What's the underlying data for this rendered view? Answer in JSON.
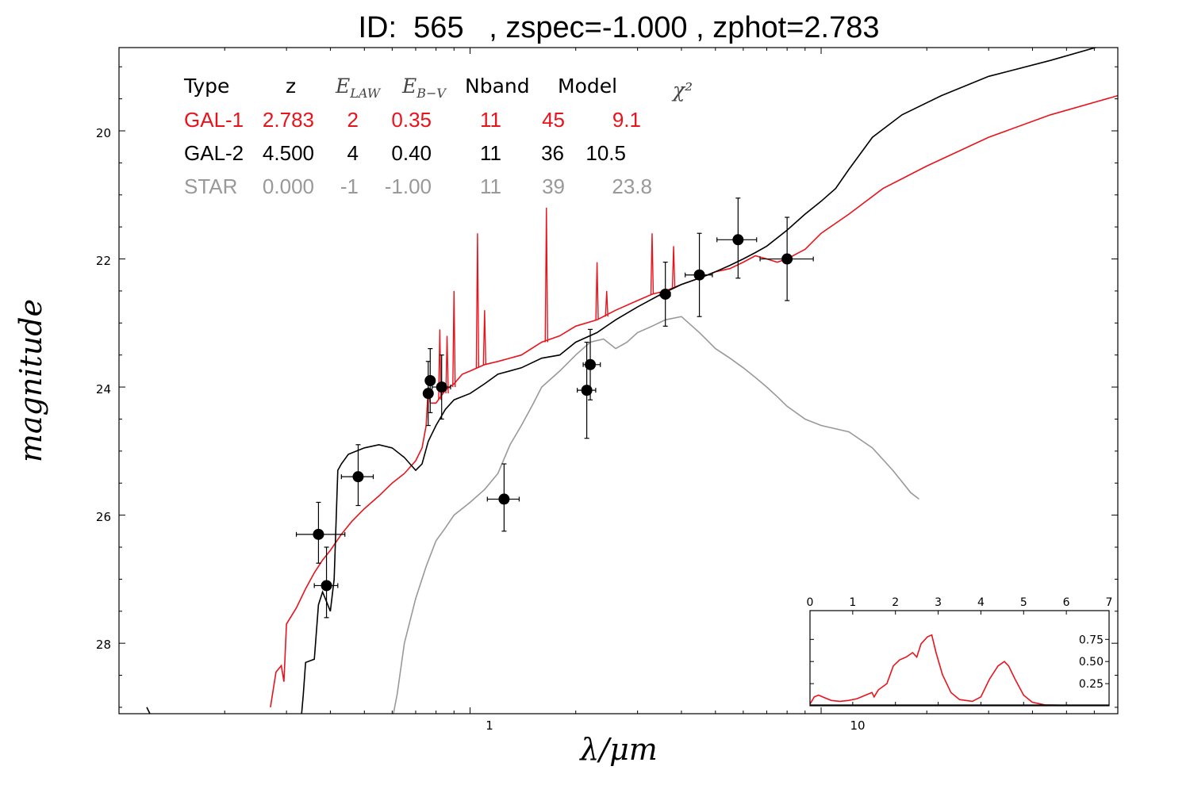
{
  "title": "ID:  565   , zspec=-1.000 , zphot=2.783",
  "colors": {
    "gal1": "#e8141c",
    "gal2": "#000000",
    "star": "#999999",
    "points": "#000000"
  },
  "chart_data": {
    "type": "line",
    "xlabel": "λ/μm",
    "ylabel": "magnitude",
    "xscale": "log",
    "xlim": [
      0.1,
      70
    ],
    "ylim": [
      29.1,
      18.7
    ],
    "x_tick_labels": [
      "1",
      "10"
    ],
    "y_tick_labels": [
      "20",
      "22",
      "24",
      "26",
      "28"
    ],
    "legend_table": {
      "headers": [
        "Type",
        "z",
        "E_LAW",
        "E_B-V",
        "Nband",
        "Model",
        "χ²"
      ],
      "rows": [
        {
          "type": "GAL-1",
          "z": "2.783",
          "elaw": "2",
          "ebv": "0.35",
          "nband": "11",
          "model": "45",
          "chi2": "9.1",
          "color": "#e8141c"
        },
        {
          "type": "GAL-2",
          "z": "4.500",
          "elaw": "4",
          "ebv": "0.40",
          "nband": "11",
          "model": "36",
          "chi2": "10.5",
          "color": "#000000"
        },
        {
          "type": "STAR",
          "z": "0.000",
          "elaw": "-1",
          "ebv": "-1.00",
          "nband": "11",
          "model": "39",
          "chi2": "23.8",
          "color": "#999999"
        }
      ]
    },
    "photometry": [
      {
        "x": 0.37,
        "y": 26.3,
        "xerr": [
          0.32,
          0.44
        ],
        "yerr": [
          25.8,
          26.75
        ]
      },
      {
        "x": 0.39,
        "y": 27.1,
        "xerr": [
          0.36,
          0.42
        ],
        "yerr": [
          26.5,
          27.6
        ]
      },
      {
        "x": 0.48,
        "y": 25.4,
        "xerr": [
          0.43,
          0.53
        ],
        "yerr": [
          24.9,
          25.85
        ]
      },
      {
        "x": 0.76,
        "y": 24.1,
        "xerr": [
          0.74,
          0.78
        ],
        "yerr": [
          23.6,
          24.6
        ]
      },
      {
        "x": 0.77,
        "y": 23.9,
        "xerr": [
          0.75,
          0.79
        ],
        "yerr": [
          23.4,
          24.4
        ]
      },
      {
        "x": 0.83,
        "y": 24.0,
        "xerr": [
          0.78,
          0.88
        ],
        "yerr": [
          23.5,
          24.5
        ]
      },
      {
        "x": 1.25,
        "y": 25.75,
        "xerr": [
          1.12,
          1.38
        ],
        "yerr": [
          25.2,
          26.25
        ]
      },
      {
        "x": 2.15,
        "y": 24.05,
        "xerr": [
          2.02,
          2.28
        ],
        "yerr": [
          23.3,
          24.8
        ]
      },
      {
        "x": 2.2,
        "y": 23.65,
        "xerr": [
          2.1,
          2.35
        ],
        "yerr": [
          23.1,
          24.2
        ]
      },
      {
        "x": 3.6,
        "y": 22.55,
        "xerr": [
          3.48,
          3.72
        ],
        "yerr": [
          22.05,
          23.05
        ]
      },
      {
        "x": 4.5,
        "y": 22.25,
        "xerr": [
          4.1,
          4.9
        ],
        "yerr": [
          21.6,
          22.9
        ]
      },
      {
        "x": 5.8,
        "y": 21.7,
        "xerr": [
          5.05,
          6.55
        ],
        "yerr": [
          21.05,
          22.3
        ]
      },
      {
        "x": 8.0,
        "y": 22.0,
        "xerr": [
          6.7,
          9.5
        ],
        "yerr": [
          21.35,
          22.65
        ]
      }
    ],
    "series": [
      {
        "key": "gal1",
        "color": "#e8141c",
        "points": [
          [
            0.27,
            29.0
          ],
          [
            0.28,
            28.45
          ],
          [
            0.29,
            28.35
          ],
          [
            0.295,
            28.6
          ],
          [
            0.3,
            27.7
          ],
          [
            0.32,
            27.45
          ],
          [
            0.34,
            27.15
          ],
          [
            0.36,
            26.9
          ],
          [
            0.38,
            26.7
          ],
          [
            0.4,
            26.55
          ],
          [
            0.43,
            26.3
          ],
          [
            0.46,
            26.1
          ],
          [
            0.5,
            25.9
          ],
          [
            0.55,
            25.7
          ],
          [
            0.6,
            25.5
          ],
          [
            0.65,
            25.35
          ],
          [
            0.7,
            25.15
          ],
          [
            0.73,
            24.95
          ],
          [
            0.75,
            24.6
          ],
          [
            0.76,
            24.0
          ],
          [
            0.77,
            24.25
          ],
          [
            0.8,
            24.25
          ],
          [
            0.85,
            24.05
          ],
          [
            0.9,
            23.95
          ],
          [
            0.95,
            23.8
          ],
          [
            1.0,
            23.75
          ],
          [
            1.1,
            23.65
          ],
          [
            1.2,
            23.6
          ],
          [
            1.4,
            23.5
          ],
          [
            1.6,
            23.3
          ],
          [
            1.8,
            23.2
          ],
          [
            2.0,
            23.05
          ],
          [
            2.3,
            22.95
          ],
          [
            2.6,
            22.8
          ],
          [
            3.0,
            22.65
          ],
          [
            3.3,
            22.55
          ],
          [
            3.6,
            22.5
          ],
          [
            4.0,
            22.4
          ],
          [
            4.5,
            22.3
          ],
          [
            5.0,
            22.2
          ],
          [
            5.5,
            22.15
          ],
          [
            6.0,
            22.05
          ],
          [
            6.5,
            21.95
          ],
          [
            7.0,
            22.0
          ],
          [
            7.5,
            22.05
          ],
          [
            8.0,
            22.0
          ],
          [
            9.0,
            21.85
          ],
          [
            10,
            21.6
          ],
          [
            12,
            21.3
          ],
          [
            15,
            20.9
          ],
          [
            20,
            20.55
          ],
          [
            30,
            20.1
          ],
          [
            45,
            19.75
          ],
          [
            70,
            19.45
          ]
        ],
        "spikes": [
          [
            0.82,
            24.2,
            23.1
          ],
          [
            0.86,
            24.1,
            23.2
          ],
          [
            0.9,
            24.0,
            22.5
          ],
          [
            1.05,
            23.7,
            21.6
          ],
          [
            1.1,
            23.65,
            22.8
          ],
          [
            1.65,
            23.3,
            21.2
          ],
          [
            2.3,
            22.95,
            22.05
          ],
          [
            2.45,
            22.9,
            22.5
          ],
          [
            3.3,
            22.55,
            21.6
          ],
          [
            3.8,
            22.45,
            21.8
          ]
        ]
      },
      {
        "key": "gal2",
        "color": "#000000",
        "points": [
          [
            0.12,
            29.0
          ],
          [
            0.125,
            29.2
          ],
          [
            0.33,
            29.2
          ],
          [
            0.335,
            28.8
          ],
          [
            0.34,
            28.3
          ],
          [
            0.36,
            28.25
          ],
          [
            0.37,
            27.4
          ],
          [
            0.38,
            27.2
          ],
          [
            0.39,
            27.35
          ],
          [
            0.4,
            27.5
          ],
          [
            0.41,
            27.0
          ],
          [
            0.42,
            25.3
          ],
          [
            0.43,
            25.2
          ],
          [
            0.45,
            25.05
          ],
          [
            0.5,
            24.95
          ],
          [
            0.55,
            24.9
          ],
          [
            0.6,
            24.95
          ],
          [
            0.65,
            25.1
          ],
          [
            0.7,
            25.3
          ],
          [
            0.73,
            25.2
          ],
          [
            0.76,
            24.85
          ],
          [
            0.8,
            24.6
          ],
          [
            0.85,
            24.35
          ],
          [
            0.9,
            24.2
          ],
          [
            1.0,
            24.1
          ],
          [
            1.1,
            23.95
          ],
          [
            1.2,
            23.8
          ],
          [
            1.4,
            23.7
          ],
          [
            1.6,
            23.55
          ],
          [
            1.8,
            23.5
          ],
          [
            2.0,
            23.3
          ],
          [
            2.3,
            23.15
          ],
          [
            2.6,
            22.95
          ],
          [
            3.0,
            22.75
          ],
          [
            3.5,
            22.55
          ],
          [
            4.0,
            22.4
          ],
          [
            4.5,
            22.3
          ],
          [
            5.0,
            22.2
          ],
          [
            5.5,
            22.1
          ],
          [
            6.0,
            22.0
          ],
          [
            6.5,
            21.9
          ],
          [
            7.0,
            21.8
          ],
          [
            8.0,
            21.55
          ],
          [
            9.0,
            21.3
          ],
          [
            10,
            21.1
          ],
          [
            11,
            20.9
          ],
          [
            12,
            20.6
          ],
          [
            14,
            20.1
          ],
          [
            17,
            19.75
          ],
          [
            22,
            19.45
          ],
          [
            30,
            19.15
          ],
          [
            45,
            18.9
          ],
          [
            70,
            18.6
          ]
        ]
      },
      {
        "key": "star",
        "color": "#999999",
        "points": [
          [
            0.6,
            29.2
          ],
          [
            0.62,
            28.8
          ],
          [
            0.65,
            28.0
          ],
          [
            0.7,
            27.3
          ],
          [
            0.75,
            26.8
          ],
          [
            0.8,
            26.4
          ],
          [
            0.85,
            26.2
          ],
          [
            0.9,
            26.0
          ],
          [
            1.0,
            25.8
          ],
          [
            1.1,
            25.6
          ],
          [
            1.2,
            25.35
          ],
          [
            1.3,
            24.9
          ],
          [
            1.4,
            24.6
          ],
          [
            1.5,
            24.3
          ],
          [
            1.6,
            24.0
          ],
          [
            1.8,
            23.75
          ],
          [
            2.0,
            23.5
          ],
          [
            2.2,
            23.3
          ],
          [
            2.4,
            23.25
          ],
          [
            2.6,
            23.4
          ],
          [
            2.8,
            23.3
          ],
          [
            3.0,
            23.15
          ],
          [
            3.3,
            23.05
          ],
          [
            3.6,
            22.95
          ],
          [
            4.0,
            22.9
          ],
          [
            4.5,
            23.15
          ],
          [
            5.0,
            23.4
          ],
          [
            5.5,
            23.55
          ],
          [
            6.0,
            23.7
          ],
          [
            6.5,
            23.85
          ],
          [
            7.0,
            24.0
          ],
          [
            7.5,
            24.15
          ],
          [
            8.0,
            24.3
          ],
          [
            9.0,
            24.5
          ],
          [
            10,
            24.6
          ],
          [
            12,
            24.7
          ],
          [
            14,
            24.95
          ],
          [
            16,
            25.3
          ],
          [
            18,
            25.65
          ],
          [
            19,
            25.75
          ]
        ]
      }
    ]
  },
  "inset": {
    "type": "line",
    "xlim": [
      0,
      7
    ],
    "ylim": [
      0,
      1.0
    ],
    "x_tick_labels": [
      "0",
      "1",
      "2",
      "3",
      "4",
      "5",
      "6",
      "7"
    ],
    "y_tick_labels": [
      "0.25",
      "0.50",
      "0.75"
    ],
    "color": "#e8141c",
    "points": [
      [
        0,
        0.02
      ],
      [
        0.1,
        0.1
      ],
      [
        0.2,
        0.12
      ],
      [
        0.35,
        0.09
      ],
      [
        0.5,
        0.06
      ],
      [
        0.7,
        0.05
      ],
      [
        0.9,
        0.06
      ],
      [
        1.1,
        0.08
      ],
      [
        1.3,
        0.12
      ],
      [
        1.45,
        0.15
      ],
      [
        1.5,
        0.1
      ],
      [
        1.6,
        0.18
      ],
      [
        1.8,
        0.25
      ],
      [
        1.95,
        0.45
      ],
      [
        2.1,
        0.52
      ],
      [
        2.25,
        0.55
      ],
      [
        2.4,
        0.6
      ],
      [
        2.5,
        0.55
      ],
      [
        2.6,
        0.7
      ],
      [
        2.75,
        0.78
      ],
      [
        2.85,
        0.8
      ],
      [
        2.95,
        0.6
      ],
      [
        3.1,
        0.35
      ],
      [
        3.3,
        0.15
      ],
      [
        3.5,
        0.07
      ],
      [
        3.8,
        0.05
      ],
      [
        4.0,
        0.1
      ],
      [
        4.2,
        0.3
      ],
      [
        4.4,
        0.45
      ],
      [
        4.55,
        0.5
      ],
      [
        4.65,
        0.45
      ],
      [
        4.8,
        0.3
      ],
      [
        5.0,
        0.12
      ],
      [
        5.2,
        0.04
      ],
      [
        5.5,
        0.01
      ],
      [
        6,
        0.005
      ],
      [
        7,
        0.005
      ]
    ]
  }
}
